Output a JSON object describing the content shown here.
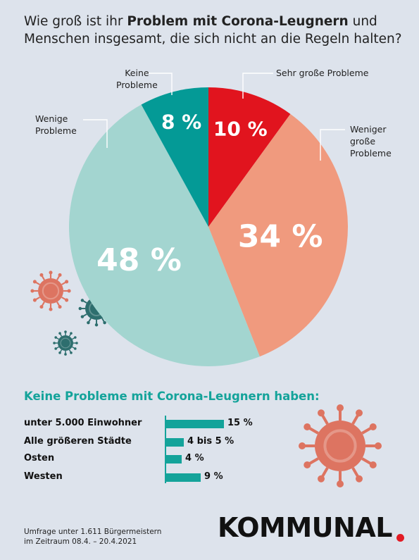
{
  "header": {
    "title_part1": "Wie groß ist ihr ",
    "title_bold": "Problem mit Corona-Leugnern",
    "title_part2": " und Menschen insgesamt, die sich nicht an die Regeln halten?"
  },
  "colors": {
    "keine": "#049a96",
    "sehr_gross": "#e1141e",
    "weniger_gross": "#f09a7e",
    "wenige": "#a3d5d0",
    "accent": "#14a39a",
    "brand_dot": "#e21b24"
  },
  "chart_data": [
    {
      "type": "pie",
      "slices": [
        {
          "label": "Sehr große Probleme",
          "value": 10,
          "value_label": "10 %"
        },
        {
          "label": "Weniger große Probleme",
          "value": 34,
          "value_label": "34 %"
        },
        {
          "label": "Wenige Probleme",
          "value": 48,
          "value_label": "48 %"
        },
        {
          "label": "Keine Probleme",
          "value": 8,
          "value_label": "8 %"
        }
      ]
    },
    {
      "type": "bar",
      "title": "Keine Probleme mit Corona-Leugnern haben:",
      "categories": [
        "unter 5.000 Einwohner",
        "Alle größeren Städte",
        "Osten",
        "Westen"
      ],
      "values": [
        15,
        4.5,
        4,
        9
      ],
      "value_labels": [
        "15 %",
        "4 bis 5 %",
        "4 %",
        "9 %"
      ]
    }
  ],
  "pie_labels": {
    "keine_line1": "Keine",
    "keine_line2": "Probleme",
    "sehr_gross": "Sehr große Probleme",
    "weniger_line1": "Weniger",
    "weniger_line2": "große",
    "weniger_line3": "Probleme",
    "wenige_line1": "Wenige",
    "wenige_line2": "Probleme"
  },
  "footnote": {
    "line1": "Umfrage unter 1.611 Bürgermeistern",
    "line2": "im Zeitraum 08.4. – 20.4.2021"
  },
  "brand": {
    "name": "KOMMUNAL"
  }
}
